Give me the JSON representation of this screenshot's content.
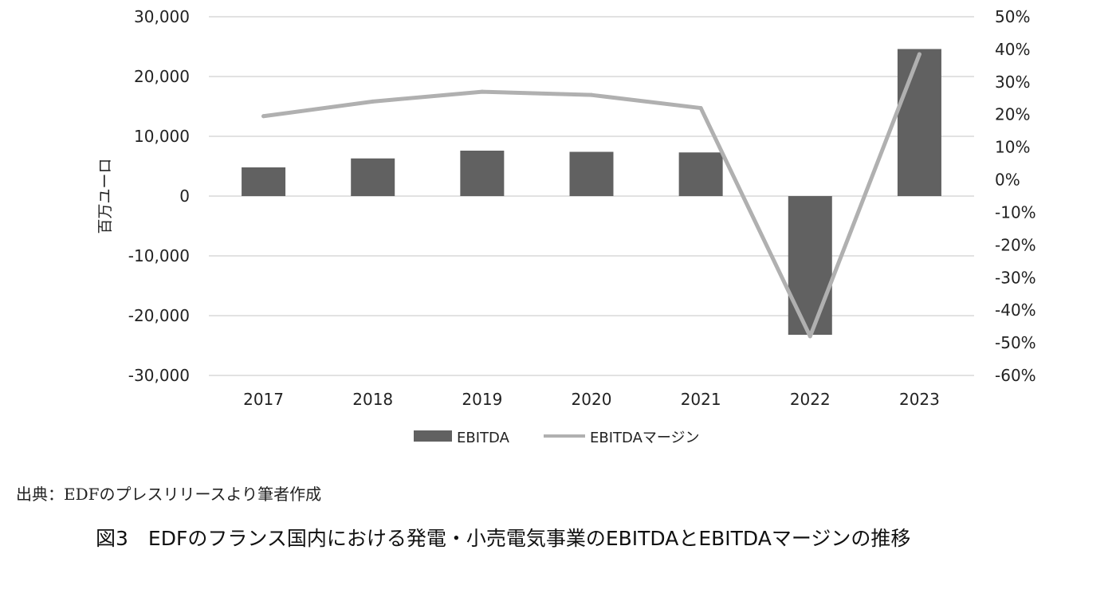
{
  "chart_data": {
    "type": "bar",
    "categories": [
      "2017",
      "2018",
      "2019",
      "2020",
      "2021",
      "2022",
      "2023"
    ],
    "series": [
      {
        "name": "EBITDA",
        "type": "bar",
        "axis": "left",
        "values": [
          4800,
          6300,
          7600,
          7400,
          7300,
          -23200,
          24600
        ]
      },
      {
        "name": "EBITDAマージン",
        "type": "line",
        "axis": "right",
        "values": [
          0.195,
          0.24,
          0.27,
          0.26,
          0.22,
          -0.48,
          0.385
        ]
      }
    ],
    "ylabel": "百万ユーロ",
    "ylim": [
      -30000,
      30000
    ],
    "y_ticks": [
      "30,000",
      "20,000",
      "10,000",
      "0",
      "-10,000",
      "-20,000",
      "-30,000"
    ],
    "y2lim": [
      -0.6,
      0.5
    ],
    "y2_ticks": [
      "50%",
      "40%",
      "30%",
      "20%",
      "10%",
      "0%",
      "-10%",
      "-20%",
      "-30%",
      "-40%",
      "-50%",
      "-60%"
    ],
    "grid": true,
    "legend_position": "bottom",
    "colors": {
      "bar": "#616161",
      "line": "#b0b0b0",
      "grid": "#d9d9d9"
    }
  },
  "source_text": "出典：EDFのプレスリリースより筆者作成",
  "caption": "図3　EDFのフランス国内における発電・小売電気事業のEBITDAとEBITDAマージンの推移"
}
